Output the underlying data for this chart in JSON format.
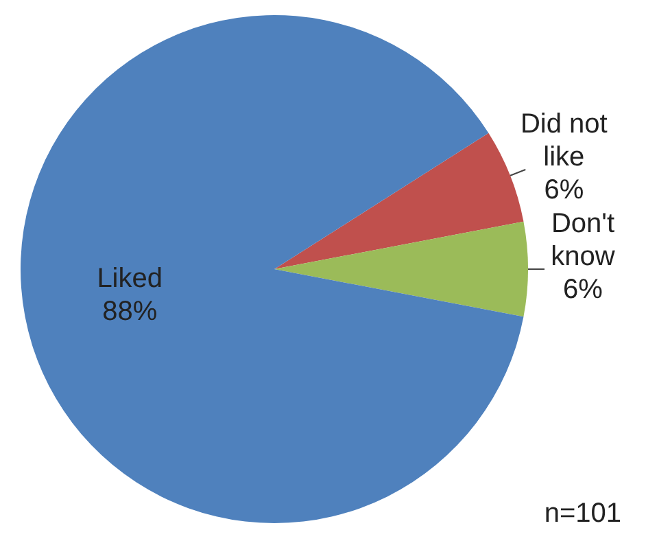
{
  "chart_data": {
    "type": "pie",
    "categories": [
      "Did not like",
      "Don't know",
      "Liked"
    ],
    "values": [
      6,
      6,
      88
    ],
    "colors": [
      "#c0504d",
      "#9bbb59",
      "#4f81bd"
    ],
    "data_labels": true,
    "value_labels": [
      "6%",
      "6%",
      "88%"
    ],
    "annotations": [
      "n=101"
    ]
  }
}
